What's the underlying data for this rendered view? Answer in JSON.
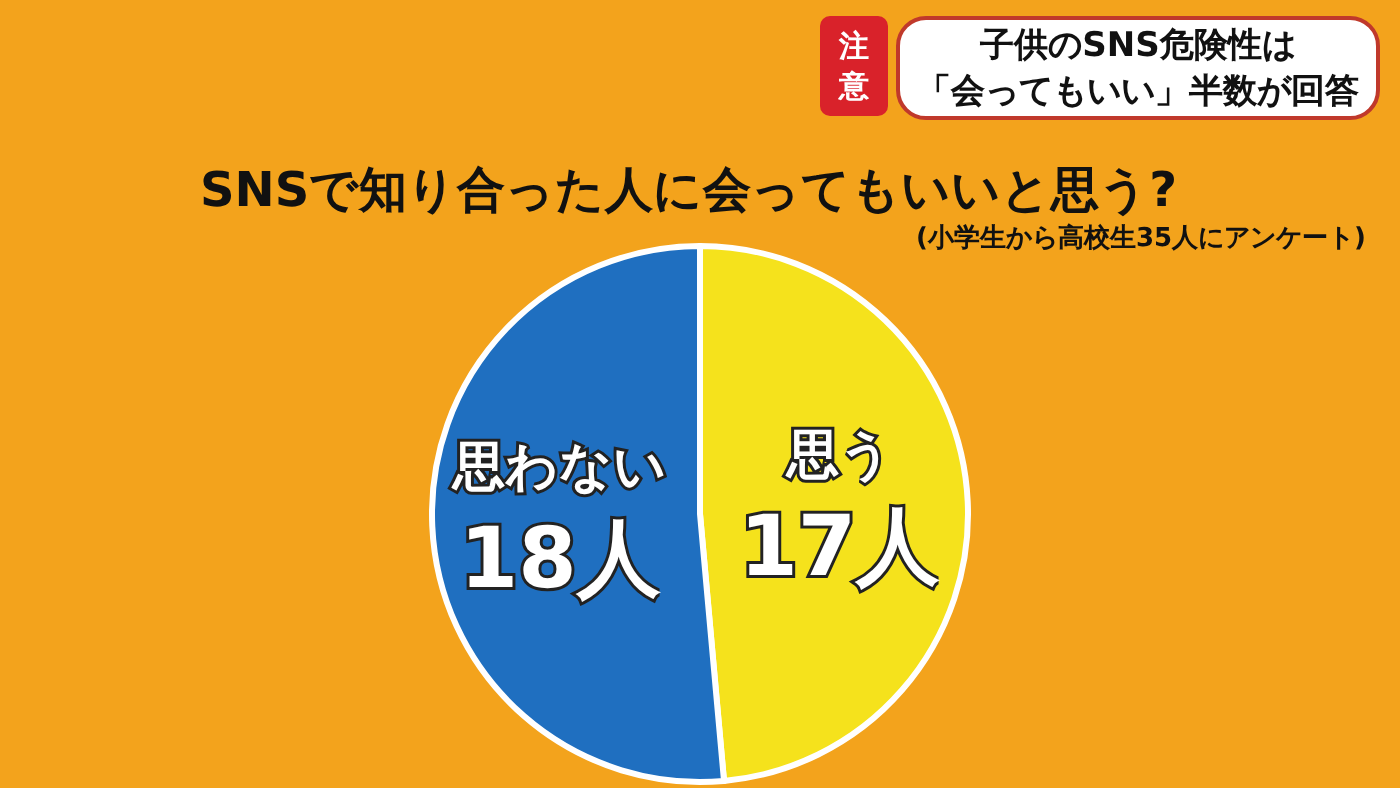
{
  "chart_data": {
    "type": "pie",
    "title": "SNSで知り合った人に会ってもいいと思う?",
    "subtitle": "(小学生から高校生35人にアンケート)",
    "categories": [
      "思う",
      "思わない"
    ],
    "values": [
      17,
      18
    ],
    "colors": [
      "#f5e21c",
      "#1f6fc0"
    ],
    "value_labels": [
      "17人",
      "18人"
    ],
    "legend": false,
    "annotations": [
      "注意",
      "子供のSNS危険性は",
      "「会ってもいい」半数が回答"
    ]
  }
}
